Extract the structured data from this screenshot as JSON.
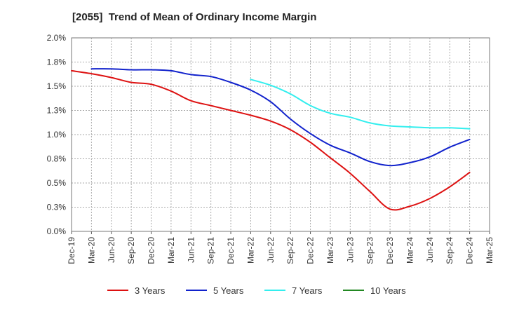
{
  "chart_data": {
    "type": "line",
    "title": "[2055]  Trend of Mean of Ordinary Income Margin",
    "xlabel": "",
    "ylabel": "",
    "x": [
      "Dec-19",
      "Mar-20",
      "Jun-20",
      "Sep-20",
      "Dec-20",
      "Mar-21",
      "Jun-21",
      "Sep-21",
      "Dec-21",
      "Mar-22",
      "Jun-22",
      "Sep-22",
      "Dec-22",
      "Mar-23",
      "Jun-23",
      "Sep-23",
      "Dec-23",
      "Mar-24",
      "Jun-24",
      "Sep-24",
      "Dec-24",
      "Mar-25"
    ],
    "y_tick_labels": [
      "0.0%",
      "0.3%",
      "0.5%",
      "0.8%",
      "1.0%",
      "1.3%",
      "1.5%",
      "1.8%",
      "2.0%"
    ],
    "y_ticks": [
      0,
      0.25,
      0.5,
      0.75,
      1.0,
      1.25,
      1.5,
      1.75,
      2.0
    ],
    "ylim": [
      0,
      2.0
    ],
    "grid": true,
    "legend_position": "bottom",
    "series": [
      {
        "name": "3 Years",
        "color": "#dd1111",
        "values": [
          1.66,
          1.63,
          1.59,
          1.54,
          1.52,
          1.45,
          1.35,
          1.3,
          1.25,
          1.2,
          1.14,
          1.05,
          0.92,
          0.76,
          0.6,
          0.41,
          0.23,
          0.26,
          0.34,
          0.46,
          0.61,
          null
        ]
      },
      {
        "name": "5 Years",
        "color": "#1122cc",
        "values": [
          null,
          1.68,
          1.68,
          1.67,
          1.67,
          1.66,
          1.62,
          1.6,
          1.54,
          1.46,
          1.34,
          1.16,
          1.01,
          0.89,
          0.81,
          0.72,
          0.68,
          0.71,
          0.77,
          0.87,
          0.95,
          null
        ]
      },
      {
        "name": "7 Years",
        "color": "#33eeee",
        "values": [
          null,
          null,
          null,
          null,
          null,
          null,
          null,
          null,
          null,
          1.57,
          1.51,
          1.42,
          1.3,
          1.22,
          1.18,
          1.12,
          1.09,
          1.08,
          1.07,
          1.07,
          1.06,
          null
        ]
      },
      {
        "name": "10 Years",
        "color": "#228822",
        "values": [
          null,
          null,
          null,
          null,
          null,
          null,
          null,
          null,
          null,
          null,
          null,
          null,
          null,
          null,
          null,
          null,
          null,
          null,
          null,
          null,
          null,
          null
        ]
      }
    ]
  }
}
